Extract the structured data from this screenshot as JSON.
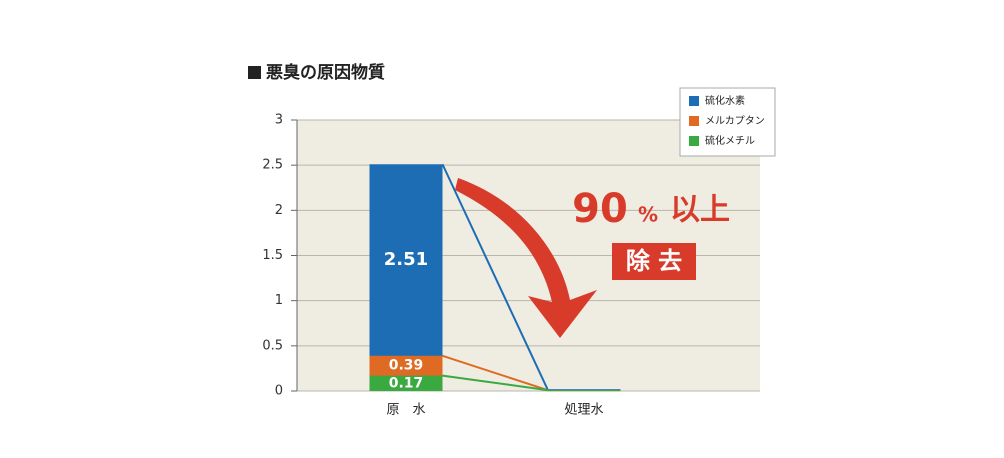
{
  "chart_data": {
    "type": "bar",
    "title": "悪臭の原因物質",
    "categories": [
      "原　水",
      "処理水"
    ],
    "series": [
      {
        "name": "硫化水素",
        "color": "#1c6db4",
        "values": [
          2.51,
          0.02
        ]
      },
      {
        "name": "メルカプタン",
        "color": "#de6a24",
        "values": [
          0.39,
          0.01
        ]
      },
      {
        "name": "硫化メチル",
        "color": "#3aa93f",
        "values": [
          0.17,
          0.01
        ]
      }
    ],
    "ylim": [
      0,
      3
    ],
    "yticks": [
      0,
      0.5,
      1,
      1.5,
      2,
      2.5,
      3
    ],
    "grid": true,
    "annotations": [
      "90",
      "%",
      "以上",
      "除 去"
    ]
  }
}
